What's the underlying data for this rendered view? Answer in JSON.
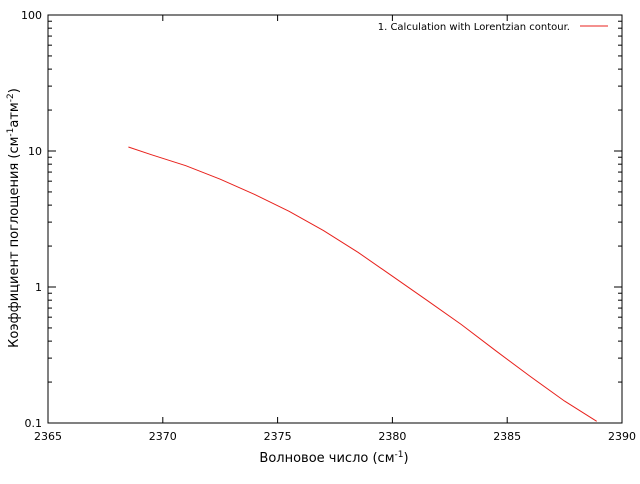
{
  "chart_data": {
    "type": "line",
    "title": "",
    "xlabel": "Волновое число (см",
    "xlabel_sup": "-1",
    "xlabel_tail": ")",
    "ylabel": "Коэффициент поглощения (см",
    "ylabel_sup1": "-1",
    "ylabel_mid": "атм",
    "ylabel_sup2": "-2",
    "ylabel_tail": ")",
    "xlim": [
      2365,
      2390
    ],
    "ylim": [
      0.1,
      100
    ],
    "yscale": "log",
    "x_ticks": [
      2365,
      2370,
      2375,
      2380,
      2385,
      2390
    ],
    "x_tick_labels": [
      "2365",
      "2370",
      "2375",
      "2380",
      "2385",
      "2390"
    ],
    "y_ticks": [
      0.1,
      1,
      10,
      100
    ],
    "y_tick_labels": [
      "0.1",
      "1",
      "10",
      "100"
    ],
    "grid": false,
    "legend_position": "top-right",
    "series": [
      {
        "name": "1. Calculation with Lorentzian contour.",
        "color": "#e8211c",
        "x": [
          2368.5,
          2369.5,
          2371,
          2372.5,
          2374,
          2375.5,
          2377,
          2378.5,
          2380,
          2381.5,
          2383,
          2384.5,
          2386,
          2387.5,
          2388.9
        ],
        "y": [
          10.7,
          9.4,
          7.8,
          6.2,
          4.8,
          3.6,
          2.6,
          1.8,
          1.2,
          0.8,
          0.53,
          0.34,
          0.22,
          0.145,
          0.103
        ]
      }
    ]
  }
}
